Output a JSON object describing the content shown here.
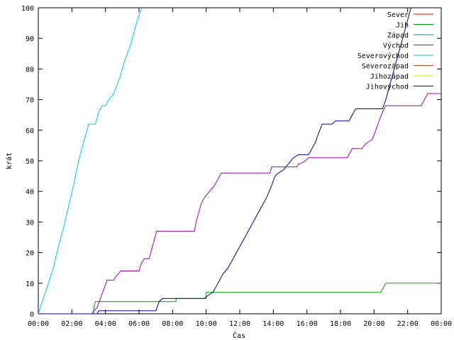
{
  "chart_data": {
    "type": "line",
    "title": "",
    "xlabel": "Čas",
    "ylabel": "krát",
    "ylim": [
      0,
      100
    ],
    "yticks": [
      0,
      10,
      20,
      30,
      40,
      50,
      60,
      70,
      80,
      90,
      100
    ],
    "xlim": [
      0,
      24
    ],
    "xticks": [
      {
        "value": 0,
        "label": "00:00"
      },
      {
        "value": 2,
        "label": "02:00"
      },
      {
        "value": 4,
        "label": "04:00"
      },
      {
        "value": 6,
        "label": "06:00"
      },
      {
        "value": 8,
        "label": "08:00"
      },
      {
        "value": 10,
        "label": "10:00"
      },
      {
        "value": 12,
        "label": "12:00"
      },
      {
        "value": 14,
        "label": "14:00"
      },
      {
        "value": 16,
        "label": "16:00"
      },
      {
        "value": 18,
        "label": "18:00"
      },
      {
        "value": 20,
        "label": "20:00"
      },
      {
        "value": 22,
        "label": "22:00"
      },
      {
        "value": 24,
        "label": "00:00"
      }
    ],
    "legend_position": "top-right",
    "grid": false,
    "series": [
      {
        "name": "Sever",
        "color": "#ff0000",
        "points": []
      },
      {
        "name": "Jih",
        "color": "#00a000",
        "points": [
          [
            0,
            0
          ],
          [
            3.3,
            0
          ],
          [
            3.3,
            2
          ],
          [
            3.4,
            4
          ],
          [
            8.2,
            4
          ],
          [
            8.2,
            5
          ],
          [
            10.0,
            5
          ],
          [
            10.0,
            7
          ],
          [
            20.4,
            7
          ],
          [
            20.6,
            9
          ],
          [
            20.7,
            10
          ],
          [
            24,
            10
          ]
        ]
      },
      {
        "name": "Západ",
        "color": "#0080a0",
        "points": []
      },
      {
        "name": "Východ",
        "color": "#a000c0",
        "points": [
          [
            0,
            0
          ],
          [
            3.2,
            0
          ],
          [
            3.3,
            1
          ],
          [
            3.5,
            2
          ],
          [
            3.7,
            5
          ],
          [
            3.9,
            8
          ],
          [
            4.1,
            11
          ],
          [
            4.5,
            11
          ],
          [
            4.6,
            12
          ],
          [
            4.9,
            14
          ],
          [
            6.0,
            14
          ],
          [
            6.1,
            16
          ],
          [
            6.3,
            18
          ],
          [
            6.6,
            18
          ],
          [
            6.8,
            22
          ],
          [
            6.95,
            25
          ],
          [
            7.05,
            27
          ],
          [
            9.3,
            27
          ],
          [
            9.4,
            30
          ],
          [
            9.55,
            33
          ],
          [
            9.7,
            36
          ],
          [
            9.9,
            38
          ],
          [
            10.2,
            40
          ],
          [
            10.5,
            42
          ],
          [
            10.7,
            44
          ],
          [
            10.9,
            46
          ],
          [
            13.8,
            46
          ],
          [
            13.9,
            48
          ],
          [
            15.4,
            48
          ],
          [
            15.5,
            49
          ],
          [
            15.6,
            49
          ],
          [
            15.9,
            50
          ],
          [
            16.1,
            51
          ],
          [
            18.4,
            51
          ],
          [
            18.5,
            52
          ],
          [
            18.7,
            54
          ],
          [
            19.3,
            54
          ],
          [
            19.4,
            55
          ],
          [
            19.6,
            56
          ],
          [
            19.9,
            57
          ],
          [
            20.1,
            60
          ],
          [
            20.3,
            63
          ],
          [
            20.5,
            66
          ],
          [
            20.7,
            68
          ],
          [
            22.8,
            68
          ],
          [
            23.0,
            70
          ],
          [
            23.2,
            72
          ],
          [
            24,
            72
          ]
        ]
      },
      {
        "name": "Severovýchod",
        "color": "#00c8e0",
        "points": [
          [
            0,
            0
          ],
          [
            0.3,
            5
          ],
          [
            0.6,
            10
          ],
          [
            0.9,
            15
          ],
          [
            1.2,
            22
          ],
          [
            1.5,
            28
          ],
          [
            1.8,
            35
          ],
          [
            2.1,
            42
          ],
          [
            2.4,
            50
          ],
          [
            2.7,
            56
          ],
          [
            2.9,
            60
          ],
          [
            3.0,
            62
          ],
          [
            3.4,
            62
          ],
          [
            3.6,
            66
          ],
          [
            3.8,
            68
          ],
          [
            4.0,
            68
          ],
          [
            4.2,
            70
          ],
          [
            4.5,
            72
          ],
          [
            4.7,
            75
          ],
          [
            4.9,
            78
          ],
          [
            5.1,
            82
          ],
          [
            5.3,
            85
          ],
          [
            5.5,
            88
          ],
          [
            5.7,
            92
          ],
          [
            5.9,
            96
          ],
          [
            6.1,
            99
          ],
          [
            6.2,
            100
          ]
        ]
      },
      {
        "name": "Severozápad",
        "color": "#c05020",
        "points": []
      },
      {
        "name": "Jihozápad",
        "color": "#e8e000",
        "points": []
      },
      {
        "name": "Jihovýchod",
        "color": "#000090",
        "points": [
          [
            0,
            0
          ],
          [
            3.5,
            0
          ],
          [
            3.6,
            1
          ],
          [
            7.0,
            1
          ],
          [
            7.2,
            4
          ],
          [
            7.4,
            5
          ],
          [
            9.9,
            5
          ],
          [
            10.1,
            6
          ],
          [
            10.4,
            7
          ],
          [
            10.6,
            9
          ],
          [
            10.8,
            11
          ],
          [
            11.0,
            13
          ],
          [
            11.3,
            15
          ],
          [
            11.5,
            17
          ],
          [
            11.8,
            20
          ],
          [
            12.1,
            23
          ],
          [
            12.4,
            26
          ],
          [
            12.7,
            29
          ],
          [
            13.0,
            32
          ],
          [
            13.3,
            35
          ],
          [
            13.6,
            38
          ],
          [
            13.9,
            42
          ],
          [
            14.1,
            45
          ],
          [
            14.3,
            46
          ],
          [
            14.6,
            47
          ],
          [
            14.9,
            49
          ],
          [
            15.2,
            51
          ],
          [
            15.5,
            52
          ],
          [
            16.1,
            52
          ],
          [
            16.3,
            54
          ],
          [
            16.5,
            56
          ],
          [
            16.7,
            59
          ],
          [
            16.9,
            62
          ],
          [
            17.5,
            62
          ],
          [
            17.7,
            63
          ],
          [
            18.5,
            63
          ],
          [
            18.7,
            65
          ],
          [
            18.9,
            67
          ],
          [
            20.5,
            67
          ],
          [
            20.7,
            70
          ],
          [
            20.9,
            74
          ],
          [
            21.1,
            78
          ],
          [
            21.3,
            82
          ],
          [
            21.5,
            86
          ],
          [
            21.7,
            90
          ],
          [
            21.9,
            94
          ],
          [
            22.1,
            98
          ],
          [
            22.2,
            100
          ]
        ]
      }
    ]
  }
}
